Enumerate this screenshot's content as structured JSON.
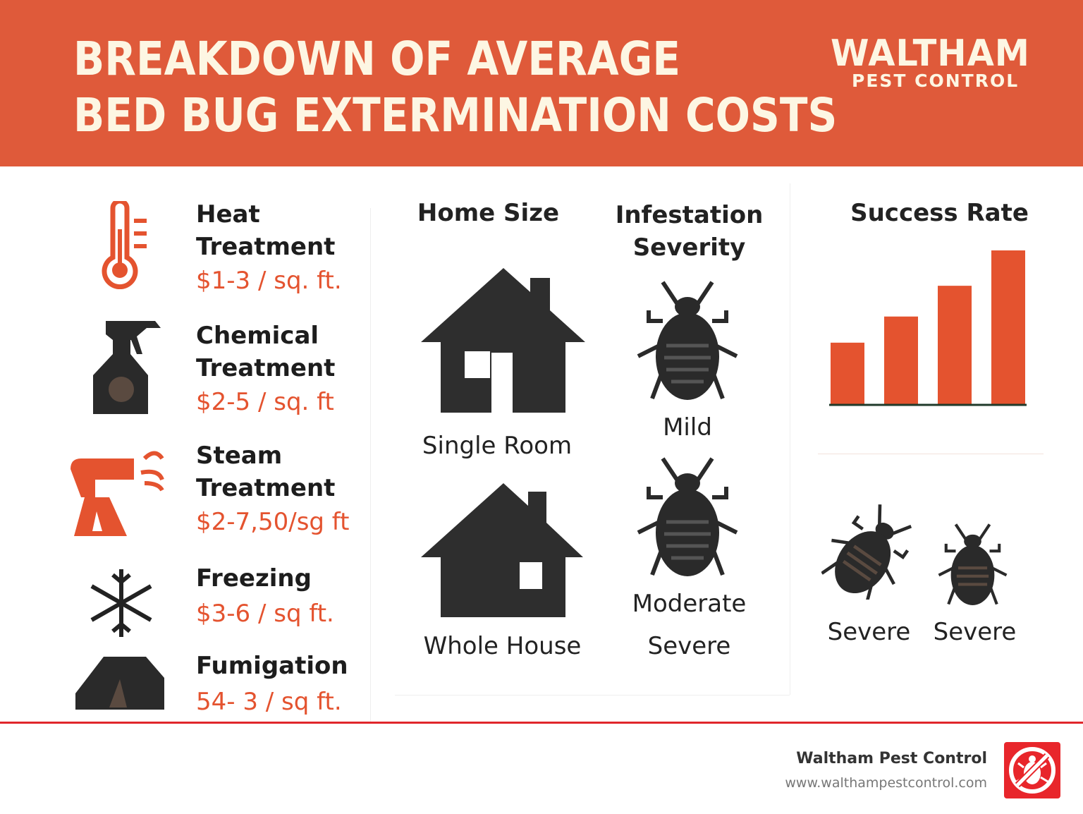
{
  "header": {
    "title_line1": "BREAKDOWN OF AVERAGE",
    "title_line2": "BED BUG EXTERMINATION  COSTS",
    "brand_name": "WALTHAM",
    "brand_sub": "PEST CONTROL",
    "bg_color": "#df5a3a"
  },
  "methods": [
    {
      "name": "Heat Treatment",
      "price": "$1-3 / sq. ft.",
      "icon": "thermometer-icon"
    },
    {
      "name": "Chemical Treatment",
      "price": "$2-5 / sq. ft",
      "icon": "spray-bottle-icon"
    },
    {
      "name": "Steam Treatment",
      "price": "$2-7,50/sg ft",
      "icon": "steamer-icon"
    },
    {
      "name": "Freezing",
      "price": "$3-6 / sq ft.",
      "icon": "snowflake-icon"
    },
    {
      "name": "Fumigation",
      "price": "54- 3 / sq ft.",
      "icon": "tent-icon"
    }
  ],
  "home_size": {
    "heading": "Home Size",
    "items": [
      "Single Room",
      "Whole House"
    ]
  },
  "severity": {
    "heading_line1": "Infestation",
    "heading_line2": "Severity",
    "items": [
      "Mild",
      "Moderate",
      "Severe"
    ]
  },
  "success": {
    "heading": "Success Rate",
    "labels": [
      "Severe",
      "Severe"
    ]
  },
  "chart_data": {
    "type": "bar",
    "values_relative": [
      40,
      57,
      77,
      100
    ],
    "bar_color": "#e4532f",
    "axes": "none",
    "grid": false
  },
  "footer": {
    "company": "Waltham Pest Control",
    "url": "www.walthampestcontrol.com",
    "logo_color": "#e8262b"
  }
}
